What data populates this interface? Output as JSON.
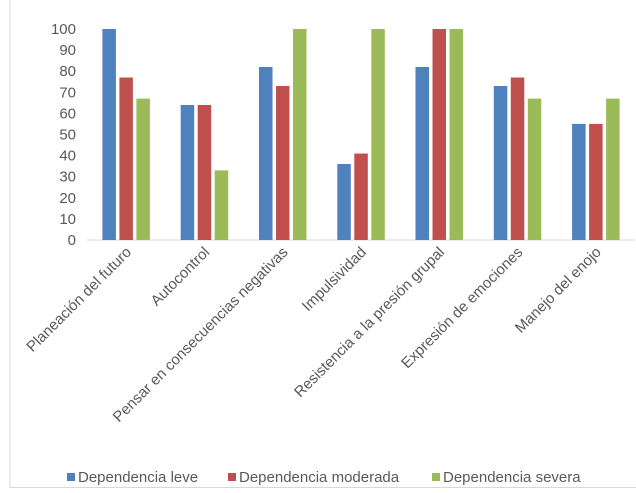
{
  "chart_data": {
    "type": "bar",
    "categories": [
      "Planeación del futuro",
      "Autocontrol",
      "Pensar en consecuencias negativas",
      "Impulsividad",
      "Resistencia a la presión grupal",
      "Expresión de emociones",
      "Manejo del enojo"
    ],
    "series": [
      {
        "name": "Dependencia leve",
        "color": "#4f81bd",
        "values": [
          100,
          64,
          82,
          36,
          82,
          73,
          55
        ]
      },
      {
        "name": "Dependencia moderada",
        "color": "#c0504d",
        "values": [
          77,
          64,
          73,
          41,
          100,
          77,
          55
        ]
      },
      {
        "name": "Dependencia severa",
        "color": "#9bbb59",
        "values": [
          67,
          33,
          100,
          100,
          100,
          67,
          67
        ]
      }
    ],
    "y_ticks": [
      "0",
      "10",
      "20",
      "30",
      "40",
      "50",
      "60",
      "70",
      "80",
      "90",
      "100"
    ],
    "ylim": [
      0,
      100
    ],
    "grid": false,
    "legend_position": "bottom",
    "title": "",
    "xlabel": "",
    "ylabel": ""
  }
}
